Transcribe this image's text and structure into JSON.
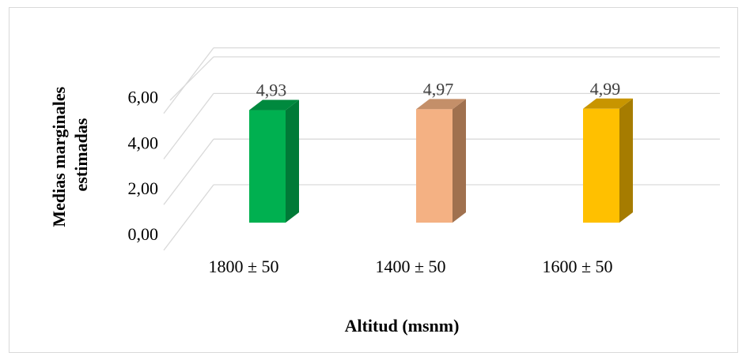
{
  "chart_data": {
    "type": "bar",
    "categories": [
      "1800 ± 50",
      "1400 ± 50",
      "1600 ± 50"
    ],
    "values": [
      4.93,
      4.97,
      4.99
    ],
    "data_labels": [
      "4,93",
      "4,97",
      "4,99"
    ],
    "y_ticks": [
      "0,00",
      "2,00",
      "4,00",
      "6,00"
    ],
    "ylim": [
      0,
      7
    ],
    "xlabel": "Altitud (msnm)",
    "ylabel_lines": [
      "Medias marginales",
      "estimadas"
    ],
    "grid": true,
    "style": "3d-column",
    "colors": [
      {
        "front": "#00b050",
        "side": "#007a37",
        "top": "#00893e"
      },
      {
        "front": "#f4b183",
        "side": "#a0714f",
        "top": "#c48f69"
      },
      {
        "front": "#ffc000",
        "side": "#a67c00",
        "top": "#c89500"
      }
    ],
    "gridline_color": "#d9d9d9"
  }
}
